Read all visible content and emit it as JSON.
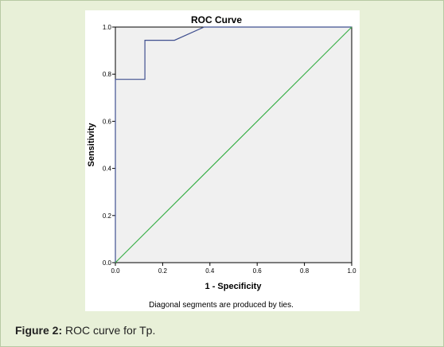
{
  "figure": {
    "label": "Figure 2:",
    "caption_text": " ROC curve for Tp."
  },
  "colors": {
    "background": "#e8f0d8",
    "plot_area": "#f0f0f0",
    "roc_line": "#3f4f8f",
    "reference_line": "#3cb04a"
  },
  "chart_data": {
    "type": "line",
    "title": "ROC Curve",
    "xlabel": "1 - Specificity",
    "ylabel": "Sensitivity",
    "xlim": [
      0.0,
      1.0
    ],
    "ylim": [
      0.0,
      1.0
    ],
    "xticks": [
      "0.0",
      "0.2",
      "0.4",
      "0.6",
      "0.8",
      "1.0"
    ],
    "yticks": [
      "0.0",
      "0.2",
      "0.4",
      "0.6",
      "0.8",
      "1.0"
    ],
    "grid": false,
    "footnote": "Diagonal segments are produced by ties.",
    "series": [
      {
        "x": [
          0.0,
          0.0,
          0.125,
          0.125,
          0.25,
          0.375,
          1.0
        ],
        "y": [
          0.0,
          0.778,
          0.778,
          0.944,
          0.944,
          1.0,
          1.0
        ]
      },
      {
        "x": [
          0.0,
          1.0
        ],
        "y": [
          0.0,
          1.0
        ]
      }
    ]
  }
}
